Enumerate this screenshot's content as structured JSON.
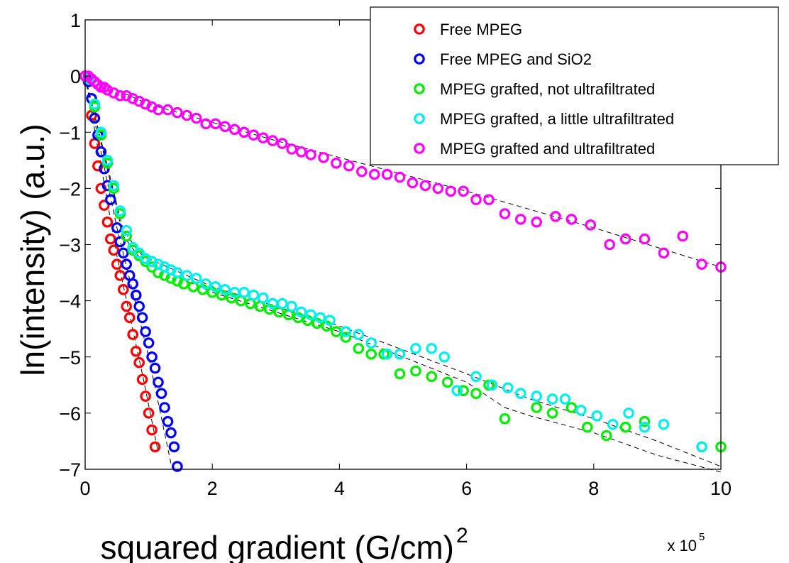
{
  "chart_data": {
    "type": "scatter",
    "title": "",
    "xlabel": "squared gradient (G/cm)",
    "xlabel_superscript": "2",
    "x_multiplier_base": "x 10",
    "x_multiplier_exp": "5",
    "ylabel": "ln(intensity) (a.u.)",
    "xlim": [
      0,
      10
    ],
    "ylim": [
      -7,
      1
    ],
    "x_ticks": [
      "0",
      "2",
      "4",
      "6",
      "8",
      "10"
    ],
    "y_ticks": [
      "1",
      "0",
      "−1",
      "−2",
      "−3",
      "−4",
      "−5",
      "−6",
      "−7"
    ],
    "grid": false,
    "legend_position": "top-right",
    "series": [
      {
        "name": "Free MPEG",
        "color": "#ff0000",
        "x": [
          0.0,
          0.1,
          0.15,
          0.2,
          0.25,
          0.3,
          0.35,
          0.4,
          0.45,
          0.5,
          0.55,
          0.6,
          0.65,
          0.7,
          0.75,
          0.8,
          0.85,
          0.9,
          0.95,
          1.0,
          1.05,
          1.1
        ],
        "y": [
          0.0,
          -0.7,
          -1.2,
          -1.6,
          -2.0,
          -2.3,
          -2.6,
          -2.9,
          -3.1,
          -3.35,
          -3.55,
          -3.8,
          -4.1,
          -4.3,
          -4.6,
          -4.9,
          -5.1,
          -5.4,
          -5.7,
          -6.0,
          -6.3,
          -6.6
        ]
      },
      {
        "name": "Free MPEG and SiO2",
        "color": "#0000ff",
        "x": [
          0.05,
          0.1,
          0.15,
          0.2,
          0.25,
          0.3,
          0.35,
          0.4,
          0.5,
          0.55,
          0.6,
          0.65,
          0.7,
          0.75,
          0.8,
          0.85,
          0.9,
          0.95,
          1.0,
          1.05,
          1.1,
          1.15,
          1.2,
          1.25,
          1.3,
          1.35,
          1.4,
          1.45
        ],
        "y": [
          -0.1,
          -0.4,
          -0.75,
          -1.05,
          -1.35,
          -1.65,
          -1.95,
          -2.2,
          -2.7,
          -2.95,
          -3.15,
          -3.35,
          -3.55,
          -3.7,
          -3.9,
          -4.1,
          -4.3,
          -4.55,
          -4.75,
          -5.0,
          -5.2,
          -5.45,
          -5.65,
          -5.9,
          -6.15,
          -6.35,
          -6.6,
          -6.95
        ]
      },
      {
        "name": "MPEG grafted, not ultrafiltrated",
        "color": "#00ee00",
        "x": [
          0.05,
          0.15,
          0.25,
          0.35,
          0.45,
          0.55,
          0.65,
          0.75,
          0.85,
          0.95,
          1.05,
          1.15,
          1.25,
          1.35,
          1.45,
          1.55,
          1.7,
          1.85,
          2.0,
          2.15,
          2.3,
          2.45,
          2.6,
          2.75,
          2.9,
          3.05,
          3.2,
          3.35,
          3.5,
          3.65,
          3.8,
          3.95,
          4.1,
          4.3,
          4.5,
          4.7,
          4.95,
          5.2,
          5.45,
          5.7,
          5.95,
          6.15,
          6.35,
          6.6,
          7.1,
          7.35,
          7.65,
          7.9,
          8.2,
          8.5,
          8.8,
          9.7,
          10.0
        ],
        "y": [
          -0.05,
          -0.55,
          -1.05,
          -1.55,
          -2.0,
          -2.45,
          -2.85,
          -3.1,
          -3.2,
          -3.3,
          -3.4,
          -3.5,
          -3.55,
          -3.6,
          -3.65,
          -3.7,
          -3.75,
          -3.8,
          -3.85,
          -3.9,
          -3.95,
          -4.0,
          -4.05,
          -4.1,
          -4.15,
          -4.2,
          -4.25,
          -4.3,
          -4.35,
          -4.4,
          -4.45,
          -4.55,
          -4.65,
          -4.85,
          -4.95,
          -4.95,
          -5.3,
          -5.25,
          -5.35,
          -5.45,
          -5.6,
          -5.65,
          -5.5,
          -6.1,
          -5.9,
          -6.0,
          -5.9,
          -6.25,
          -6.4,
          -6.25,
          -6.15,
          -6.6,
          -6.6
        ]
      },
      {
        "name": "MPEG grafted, a little ultrafiltrated",
        "color": "#00eeee",
        "x": [
          0.05,
          0.15,
          0.25,
          0.35,
          0.45,
          0.55,
          0.65,
          0.75,
          0.85,
          0.95,
          1.05,
          1.15,
          1.25,
          1.35,
          1.45,
          1.6,
          1.75,
          1.9,
          2.05,
          2.2,
          2.35,
          2.5,
          2.65,
          2.8,
          2.95,
          3.1,
          3.25,
          3.4,
          3.55,
          3.7,
          3.85,
          4.1,
          4.3,
          4.5,
          4.75,
          4.95,
          5.2,
          5.45,
          5.65,
          5.85,
          6.15,
          6.4,
          6.65,
          6.85,
          7.1,
          7.35,
          7.55,
          7.8,
          8.05,
          8.3,
          8.55,
          8.8,
          9.1,
          9.7
        ],
        "y": [
          -0.05,
          -0.5,
          -1.0,
          -1.5,
          -1.95,
          -2.4,
          -2.75,
          -3.05,
          -3.15,
          -3.25,
          -3.3,
          -3.35,
          -3.4,
          -3.45,
          -3.5,
          -3.55,
          -3.6,
          -3.7,
          -3.75,
          -3.8,
          -3.85,
          -3.85,
          -3.9,
          -3.95,
          -4.05,
          -4.05,
          -4.1,
          -4.2,
          -4.25,
          -4.3,
          -4.35,
          -4.55,
          -4.6,
          -4.75,
          -4.95,
          -4.95,
          -4.85,
          -4.85,
          -5.0,
          -5.6,
          -5.35,
          -5.5,
          -5.55,
          -5.65,
          -5.7,
          -5.75,
          -5.75,
          -5.95,
          -6.05,
          -6.2,
          -6.0,
          -6.25,
          -6.2,
          -6.6
        ]
      },
      {
        "name": "MPEG grafted and ultrafiltrated",
        "color": "#ff00ff",
        "x": [
          0.0,
          0.05,
          0.1,
          0.15,
          0.2,
          0.25,
          0.3,
          0.35,
          0.45,
          0.55,
          0.65,
          0.75,
          0.85,
          0.95,
          1.05,
          1.15,
          1.3,
          1.45,
          1.6,
          1.75,
          1.9,
          2.05,
          2.2,
          2.35,
          2.5,
          2.65,
          2.8,
          2.95,
          3.1,
          3.25,
          3.4,
          3.55,
          3.75,
          3.95,
          4.15,
          4.35,
          4.55,
          4.75,
          4.95,
          5.15,
          5.35,
          5.55,
          5.75,
          5.95,
          6.15,
          6.35,
          6.6,
          6.85,
          7.1,
          7.4,
          7.65,
          7.95,
          8.25,
          8.5,
          8.8,
          9.1,
          9.4,
          9.7,
          10.0
        ],
        "y": [
          0.0,
          0.0,
          -0.05,
          -0.1,
          -0.15,
          -0.2,
          -0.2,
          -0.25,
          -0.3,
          -0.35,
          -0.35,
          -0.4,
          -0.45,
          -0.5,
          -0.55,
          -0.6,
          -0.6,
          -0.65,
          -0.7,
          -0.75,
          -0.85,
          -0.85,
          -0.9,
          -0.95,
          -1.0,
          -1.05,
          -1.1,
          -1.15,
          -1.2,
          -1.3,
          -1.35,
          -1.4,
          -1.45,
          -1.55,
          -1.6,
          -1.7,
          -1.75,
          -1.75,
          -1.8,
          -1.9,
          -1.95,
          -2.0,
          -2.05,
          -2.05,
          -2.2,
          -2.2,
          -2.45,
          -2.55,
          -2.6,
          -2.5,
          -2.55,
          -2.65,
          -3.0,
          -2.9,
          -2.9,
          -3.15,
          -2.85,
          -3.35,
          -3.4
        ]
      }
    ],
    "fit_lines": [
      {
        "x": [
          0.0,
          0.5,
          0.9,
          1.15
        ],
        "y": [
          0.0,
          -3.2,
          -5.3,
          -6.7
        ]
      },
      {
        "x": [
          0.0,
          0.5,
          1.0,
          1.35
        ],
        "y": [
          0.0,
          -2.7,
          -5.0,
          -6.9
        ]
      },
      {
        "x": [
          0.0,
          0.6,
          0.9,
          2.0,
          4.0,
          6.0,
          6.6,
          7.0,
          8.0,
          9.0,
          10.0
        ],
        "y": [
          0.0,
          -2.85,
          -3.3,
          -3.85,
          -4.55,
          -5.45,
          -5.9,
          -6.05,
          -6.35,
          -6.75,
          -7.05
        ]
      },
      {
        "x": [
          0.0,
          0.6,
          0.9,
          2.0,
          4.0,
          6.0,
          7.0,
          8.0,
          9.0,
          10.0
        ],
        "y": [
          0.0,
          -2.75,
          -3.2,
          -3.75,
          -4.45,
          -5.3,
          -5.75,
          -6.1,
          -6.5,
          -6.95
        ]
      },
      {
        "x": [
          0.0,
          1.0,
          3.0,
          6.0,
          8.0,
          10.0
        ],
        "y": [
          0.0,
          -0.5,
          -1.15,
          -2.05,
          -2.7,
          -3.4
        ]
      }
    ]
  }
}
